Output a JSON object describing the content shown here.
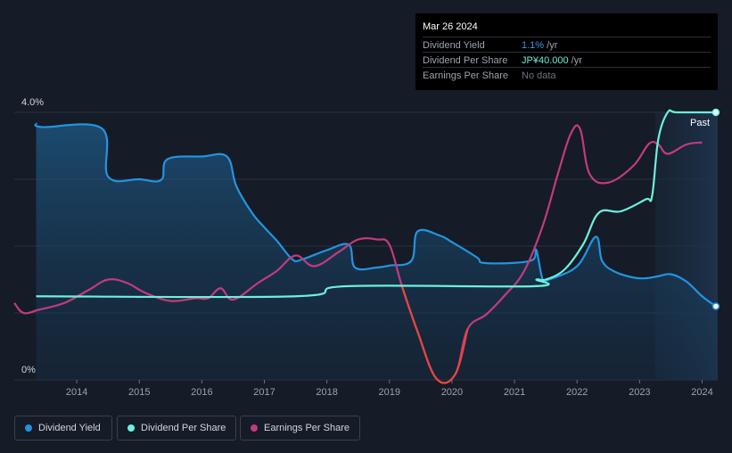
{
  "tooltip": {
    "date": "Mar 26 2024",
    "rows": [
      {
        "label": "Dividend Yield",
        "value": "1.1%",
        "unit": " /yr"
      },
      {
        "label": "Dividend Per Share",
        "value": "JP¥40.000",
        "unit": " /yr"
      },
      {
        "label": "Earnings Per Share",
        "value": "No data",
        "unit": ""
      }
    ]
  },
  "past_label": "Past",
  "legend": [
    {
      "label": "Dividend Yield",
      "color": "#2394df"
    },
    {
      "label": "Dividend Per Share",
      "color": "#6cf0dc"
    },
    {
      "label": "Earnings Per Share",
      "color": "#c23b7e"
    }
  ],
  "chart_data": {
    "type": "line",
    "title": "",
    "xlabel": "",
    "ylabel": "",
    "xlim": [
      2013.0,
      2024.25
    ],
    "ylim": [
      0,
      4.0
    ],
    "y_tick_labels": [
      "0%",
      "4.0%"
    ],
    "x_tick_labels": [
      "2014",
      "2015",
      "2016",
      "2017",
      "2018",
      "2019",
      "2020",
      "2021",
      "2022",
      "2023",
      "2024"
    ],
    "past_region_start": 2023.25,
    "series": [
      {
        "name": "Dividend Yield",
        "color": "#2394df",
        "x": [
          2013.35,
          2013.45,
          2014.4,
          2014.5,
          2015.0,
          2015.35,
          2015.45,
          2016.0,
          2016.4,
          2016.55,
          2016.8,
          2017.0,
          2017.2,
          2017.45,
          2017.6,
          2018.0,
          2018.35,
          2018.45,
          2018.8,
          2019.0,
          2019.35,
          2019.45,
          2019.8,
          2020.0,
          2020.4,
          2020.5,
          2021.0,
          2021.3,
          2021.35,
          2021.45,
          2021.55,
          2022.0,
          2022.3,
          2022.4,
          2022.6,
          2022.9,
          2023.1,
          2023.3,
          2023.5,
          2023.75,
          2024.0,
          2024.22
        ],
        "values": [
          3.84,
          3.78,
          3.76,
          3.04,
          3.0,
          2.99,
          3.3,
          3.34,
          3.34,
          2.9,
          2.5,
          2.28,
          2.08,
          1.8,
          1.8,
          1.94,
          2.02,
          1.68,
          1.68,
          1.71,
          1.78,
          2.22,
          2.16,
          2.06,
          1.83,
          1.75,
          1.75,
          1.8,
          1.94,
          1.5,
          1.5,
          1.7,
          2.14,
          1.78,
          1.62,
          1.53,
          1.52,
          1.55,
          1.58,
          1.47,
          1.25,
          1.1
        ]
      },
      {
        "name": "Dividend Per Share",
        "color": "#6cf0dc",
        "x": [
          2013.35,
          2017.5,
          2018.3,
          2021.3,
          2021.35,
          2021.5,
          2021.8,
          2022.1,
          2022.35,
          2022.7,
          2023.1,
          2023.2,
          2023.3,
          2023.45,
          2023.6,
          2024.22
        ],
        "values": [
          1.25,
          1.25,
          1.4,
          1.4,
          1.5,
          1.5,
          1.65,
          2.03,
          2.5,
          2.52,
          2.7,
          2.75,
          3.6,
          4.0,
          4.0,
          4.0
        ]
      },
      {
        "name": "Earnings Per Share",
        "color": "#c23b7e",
        "x": [
          2013.0,
          2013.15,
          2013.4,
          2013.8,
          2014.2,
          2014.5,
          2014.8,
          2015.1,
          2015.5,
          2015.9,
          2016.1,
          2016.3,
          2016.5,
          2016.9,
          2017.2,
          2017.5,
          2017.8,
          2018.2,
          2018.5,
          2018.8,
          2019.0,
          2019.2,
          2019.45,
          2019.75,
          2020.05,
          2020.25,
          2020.55,
          2020.85,
          2021.15,
          2021.45,
          2021.7,
          2021.9,
          2022.05,
          2022.2,
          2022.5,
          2022.9,
          2023.15,
          2023.3,
          2023.45,
          2023.75,
          2024.0
        ],
        "values": [
          1.15,
          1.0,
          1.05,
          1.15,
          1.35,
          1.5,
          1.45,
          1.3,
          1.18,
          1.22,
          1.22,
          1.37,
          1.2,
          1.45,
          1.63,
          1.86,
          1.7,
          1.92,
          2.1,
          2.1,
          2.02,
          1.4,
          0.72,
          0.02,
          0.08,
          0.76,
          0.98,
          1.27,
          1.62,
          2.3,
          3.1,
          3.68,
          3.75,
          3.08,
          2.95,
          3.2,
          3.53,
          3.52,
          3.38,
          3.52,
          3.55
        ]
      }
    ]
  }
}
